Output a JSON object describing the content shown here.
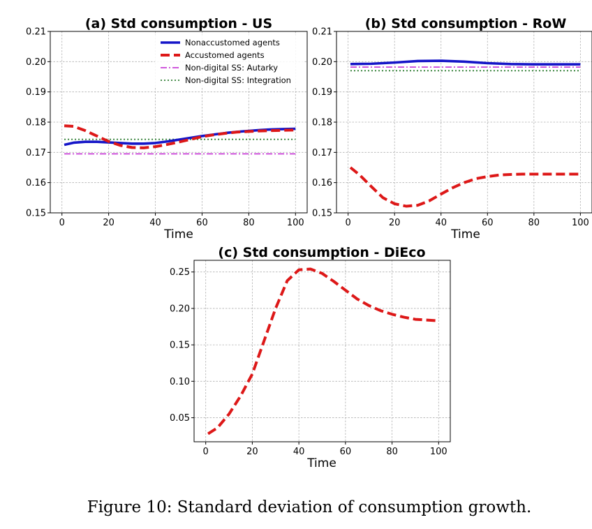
{
  "caption": "Figure 10: Standard deviation of consumption growth.",
  "colors": {
    "nonaccustomed": "#1515c8",
    "accustomed": "#dd1818",
    "autarky": "#bf20d0",
    "integration": "#2e7d32"
  },
  "chart_data": [
    {
      "type": "line",
      "title": "(a) Std consumption - US",
      "xlabel": "Time",
      "ylabel": "",
      "xlim": [
        -5,
        105
      ],
      "ylim": [
        0.15,
        0.21
      ],
      "xticks": [
        0,
        20,
        40,
        60,
        80,
        100
      ],
      "xtick_labels": [
        "0",
        "20",
        "40",
        "60",
        "80",
        "100"
      ],
      "yticks": [
        0.15,
        0.16,
        0.17,
        0.18,
        0.19,
        0.2,
        0.21
      ],
      "ytick_labels": [
        "0.15",
        "0.16",
        "0.17",
        "0.18",
        "0.19",
        "0.20",
        "0.21"
      ],
      "grid": true,
      "legend": "top-right",
      "series": [
        {
          "name": "Nonaccustomed agents",
          "style": "solid-thick",
          "color_key": "nonaccustomed",
          "x": [
            1,
            5,
            10,
            15,
            20,
            25,
            30,
            35,
            40,
            45,
            50,
            55,
            60,
            65,
            70,
            75,
            80,
            85,
            90,
            95,
            100
          ],
          "y": [
            0.1725,
            0.1732,
            0.1735,
            0.1735,
            0.1733,
            0.1731,
            0.1729,
            0.1729,
            0.1731,
            0.1736,
            0.1742,
            0.1748,
            0.1754,
            0.1759,
            0.1764,
            0.1768,
            0.1771,
            0.1774,
            0.1776,
            0.1777,
            0.1778
          ]
        },
        {
          "name": "Accustomed agents",
          "style": "dashed-thick",
          "color_key": "accustomed",
          "x": [
            1,
            5,
            10,
            15,
            20,
            25,
            30,
            35,
            40,
            45,
            50,
            55,
            60,
            65,
            70,
            75,
            80,
            85,
            90,
            95,
            100
          ],
          "y": [
            0.1788,
            0.1786,
            0.1772,
            0.1754,
            0.1736,
            0.1723,
            0.1716,
            0.1715,
            0.1719,
            0.1726,
            0.1734,
            0.1743,
            0.1752,
            0.1758,
            0.1763,
            0.1767,
            0.1769,
            0.1771,
            0.1772,
            0.1773,
            0.1774
          ]
        },
        {
          "name": "Non-digital SS: Autarky",
          "style": "dashdot",
          "color_key": "autarky",
          "x": [
            1,
            100
          ],
          "y": [
            0.1695,
            0.1695
          ]
        },
        {
          "name": "Non-digital SS: Integration",
          "style": "dotted",
          "color_key": "integration",
          "x": [
            1,
            100
          ],
          "y": [
            0.1743,
            0.1743
          ]
        }
      ]
    },
    {
      "type": "line",
      "title": "(b) Std consumption - RoW",
      "xlabel": "Time",
      "ylabel": "",
      "xlim": [
        -5,
        105
      ],
      "ylim": [
        0.15,
        0.21
      ],
      "xticks": [
        0,
        20,
        40,
        60,
        80,
        100
      ],
      "xtick_labels": [
        "0",
        "20",
        "40",
        "60",
        "80",
        "100"
      ],
      "yticks": [
        0.15,
        0.16,
        0.17,
        0.18,
        0.19,
        0.2,
        0.21
      ],
      "ytick_labels": [
        "0.15",
        "0.16",
        "0.17",
        "0.18",
        "0.19",
        "0.20",
        "0.21"
      ],
      "grid": true,
      "series": [
        {
          "name": "Nonaccustomed agents",
          "style": "solid-thick",
          "color_key": "nonaccustomed",
          "x": [
            1,
            10,
            20,
            30,
            40,
            50,
            60,
            70,
            80,
            90,
            100
          ],
          "y": [
            0.1992,
            0.1993,
            0.1997,
            0.2002,
            0.2003,
            0.2,
            0.1995,
            0.1992,
            0.1991,
            0.1991,
            0.1991
          ]
        },
        {
          "name": "Accustomed agents",
          "style": "dashed-thick",
          "color_key": "accustomed",
          "x": [
            1,
            5,
            10,
            15,
            20,
            25,
            30,
            35,
            40,
            45,
            50,
            55,
            60,
            65,
            70,
            75,
            80,
            85,
            90,
            95,
            100
          ],
          "y": [
            0.165,
            0.1625,
            0.1587,
            0.155,
            0.153,
            0.1522,
            0.1525,
            0.154,
            0.1562,
            0.1583,
            0.16,
            0.1613,
            0.162,
            0.1625,
            0.1627,
            0.1628,
            0.1628,
            0.1628,
            0.1628,
            0.1628,
            0.1628
          ]
        },
        {
          "name": "Non-digital SS: Autarky",
          "style": "dashdot",
          "color_key": "autarky",
          "x": [
            1,
            100
          ],
          "y": [
            0.1982,
            0.1982
          ]
        },
        {
          "name": "Non-digital SS: Integration",
          "style": "dotted",
          "color_key": "integration",
          "x": [
            1,
            100
          ],
          "y": [
            0.197,
            0.197
          ]
        }
      ]
    },
    {
      "type": "line",
      "title": "(c) Std consumption - DiEco",
      "xlabel": "Time",
      "ylabel": "",
      "xlim": [
        -5,
        105
      ],
      "ylim": [
        0.017,
        0.266
      ],
      "xticks": [
        0,
        20,
        40,
        60,
        80,
        100
      ],
      "xtick_labels": [
        "0",
        "20",
        "40",
        "60",
        "80",
        "100"
      ],
      "yticks": [
        0.05,
        0.1,
        0.15,
        0.2,
        0.25
      ],
      "ytick_labels": [
        "0.05",
        "0.10",
        "0.15",
        "0.20",
        "0.25"
      ],
      "grid": true,
      "series": [
        {
          "name": "Accustomed agents",
          "style": "dashed-thick",
          "color_key": "accustomed",
          "x": [
            1,
            5,
            10,
            15,
            20,
            25,
            30,
            35,
            40,
            45,
            50,
            55,
            60,
            65,
            70,
            75,
            80,
            85,
            90,
            95,
            100
          ],
          "y": [
            0.028,
            0.036,
            0.055,
            0.08,
            0.11,
            0.155,
            0.2,
            0.238,
            0.253,
            0.254,
            0.248,
            0.237,
            0.225,
            0.213,
            0.204,
            0.197,
            0.192,
            0.188,
            0.185,
            0.184,
            0.183
          ]
        }
      ]
    }
  ]
}
